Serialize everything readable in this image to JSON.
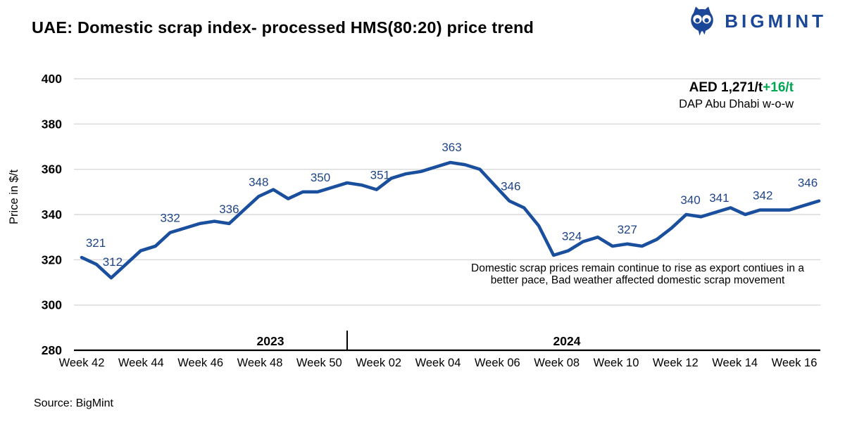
{
  "header": {
    "title": "UAE: Domestic scrap index- processed HMS(80:20) price trend",
    "brand": "BIGMINT"
  },
  "price_callout": {
    "value": "AED 1,271/t",
    "change": "+16/t",
    "basis": "DAP Abu Dhabi w-o-w",
    "change_color": "#00a651"
  },
  "annotation": {
    "line1": "Domestic scrap prices remain continue to rise  as export contiues in a",
    "line2": "better pace, Bad weather affected domestic scrap movement"
  },
  "source": "Source: BigMint",
  "chart_data": {
    "type": "line",
    "title": "UAE: Domestic scrap index- processed HMS(80:20) price trend",
    "ylabel": "Price in $/t",
    "ylim": [
      280,
      400
    ],
    "yticks": [
      400,
      380,
      360,
      340,
      320,
      300,
      280
    ],
    "xticks": [
      "Week 42",
      "Week 44",
      "Week 46",
      "Week 48",
      "Week 50",
      "Week 02",
      "Week 04",
      "Week 06",
      "Week 08",
      "Week 10",
      "Week 12",
      "Week 14",
      "Week 16"
    ],
    "year_labels": [
      "2023",
      "2024"
    ],
    "grid": true,
    "legend": false,
    "colors": {
      "line": "#1a4f9e",
      "point_label": "#1e4486",
      "gridline": "#d9d9d9",
      "axis": "#000000"
    },
    "series": [
      {
        "name": "Processed HMS(80:20) domestic scrap price ($/t)",
        "color": "#1a4f9e",
        "values": [
          321,
          318,
          312,
          318,
          324,
          326,
          332,
          334,
          336,
          337,
          336,
          342,
          348,
          351,
          347,
          350,
          350,
          352,
          354,
          353,
          351,
          356,
          358,
          359,
          361,
          363,
          362,
          360,
          353,
          346,
          343,
          335,
          322,
          324,
          328,
          330,
          326,
          327,
          326,
          329,
          334,
          340,
          339,
          341,
          343,
          340,
          342,
          342,
          342,
          344,
          346
        ]
      }
    ],
    "labeled_points": [
      {
        "index": 0,
        "label": "321"
      },
      {
        "index": 2,
        "label": "312"
      },
      {
        "index": 6,
        "label": "332"
      },
      {
        "index": 10,
        "label": "336"
      },
      {
        "index": 12,
        "label": "348"
      },
      {
        "index": 16,
        "label": "350"
      },
      {
        "index": 20,
        "label": "351"
      },
      {
        "index": 25,
        "label": "363"
      },
      {
        "index": 29,
        "label": "346"
      },
      {
        "index": 33,
        "label": "324"
      },
      {
        "index": 37,
        "label": "327"
      },
      {
        "index": 41,
        "label": "340"
      },
      {
        "index": 43,
        "label": "341"
      },
      {
        "index": 46,
        "label": "342"
      },
      {
        "index": 50,
        "label": "346"
      }
    ]
  }
}
